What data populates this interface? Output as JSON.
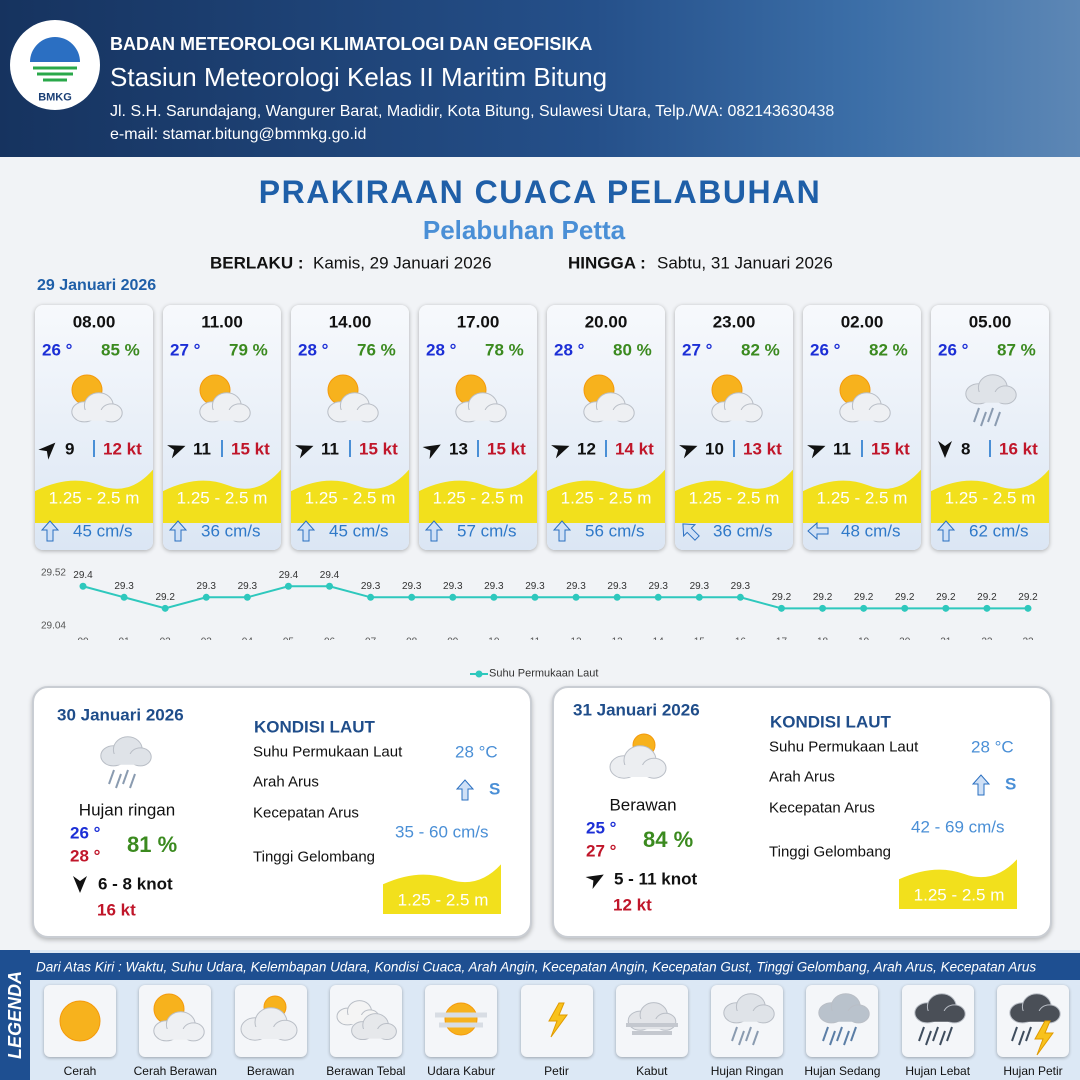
{
  "header": {
    "logo_text": "BMKG",
    "agency": "BADAN METEOROLOGI KLIMATOLOGI DAN GEOFISIKA",
    "station": "Stasiun Meteorologi Kelas II Maritim Bitung",
    "address": "Jl. S.H. Sarundajang, Wangurer Barat, Madidir, Kota Bitung, Sulawesi Utara, Telp./WA: 082143630438",
    "email": "e-mail: stamar.bitung@bmmkg.go.id"
  },
  "title": "PRAKIRAAN CUACA PELABUHAN",
  "subtitle": "Pelabuhan Petta",
  "validity": {
    "from_label": "BERLAKU :",
    "from": "Kamis, 29 Januari 2026",
    "to_label": "HINGGA :",
    "to": "Sabtu, 31 Januari 2026"
  },
  "day1": {
    "date": "29 Januari 2026",
    "slots": [
      {
        "time": "08.00",
        "temp": "26 °",
        "humidity": "85 %",
        "wind": "9",
        "gust": "12 kt",
        "wave": "1.25 - 2.5 m",
        "current": "45 cm/s"
      },
      {
        "time": "11.00",
        "temp": "27 °",
        "humidity": "79 %",
        "wind": "11",
        "gust": "15 kt",
        "wave": "1.25 - 2.5 m",
        "current": "36 cm/s"
      },
      {
        "time": "14.00",
        "temp": "28 °",
        "humidity": "76 %",
        "wind": "11",
        "gust": "15 kt",
        "wave": "1.25 - 2.5 m",
        "current": "45 cm/s"
      },
      {
        "time": "17.00",
        "temp": "28 °",
        "humidity": "78 %",
        "wind": "13",
        "gust": "15 kt",
        "wave": "1.25 - 2.5 m",
        "current": "57 cm/s"
      },
      {
        "time": "20.00",
        "temp": "28 °",
        "humidity": "80 %",
        "wind": "12",
        "gust": "14 kt",
        "wave": "1.25 - 2.5 m",
        "current": "56 cm/s"
      },
      {
        "time": "23.00",
        "temp": "27 °",
        "humidity": "82 %",
        "wind": "10",
        "gust": "13 kt",
        "wave": "1.25 - 2.5 m",
        "current": "36 cm/s"
      },
      {
        "time": "02.00",
        "temp": "26 °",
        "humidity": "82 %",
        "wind": "11",
        "gust": "15 kt",
        "wave": "1.25 - 2.5 m",
        "current": "48 cm/s"
      },
      {
        "time": "05.00",
        "temp": "26 °",
        "humidity": "87 %",
        "wind": "8",
        "gust": "16 kt",
        "wave": "1.25 - 2.5 m",
        "current": "62 cm/s"
      }
    ]
  },
  "chart_data": {
    "type": "line",
    "categories": [
      "00",
      "01",
      "02",
      "03",
      "04",
      "05",
      "06",
      "07",
      "08",
      "09",
      "10",
      "11",
      "12",
      "13",
      "14",
      "15",
      "16",
      "17",
      "18",
      "19",
      "20",
      "21",
      "22",
      "23"
    ],
    "series": [
      {
        "name": "Suhu Permukaan Laut",
        "color": "#2ec8bd",
        "values": [
          29.4,
          29.3,
          29.2,
          29.3,
          29.3,
          29.4,
          29.4,
          29.3,
          29.3,
          29.3,
          29.3,
          29.3,
          29.3,
          29.3,
          29.3,
          29.3,
          29.3,
          29.2,
          29.2,
          29.2,
          29.2,
          29.2,
          29.2,
          29.2
        ]
      }
    ],
    "ylim": [
      29.04,
      29.52
    ],
    "yticks": [
      29.04,
      29.52
    ]
  },
  "days": [
    {
      "date": "30 Januari 2026",
      "condition": "Hujan ringan",
      "temp_min": "26 °",
      "temp_max": "28 °",
      "humidity": "81 %",
      "wind": "6 - 8 knot",
      "gust": "16 kt",
      "sea_title": "KONDISI LAUT",
      "sst_label": "Suhu Permukaan Laut",
      "sst": "28 °C",
      "current_dir_label": "Arah Arus",
      "current_dir": "S",
      "current_speed_label": "Kecepatan Arus",
      "current_speed": "35 - 60 cm/s",
      "wave_label": "Tinggi Gelombang",
      "wave": "1.25 - 2.5 m"
    },
    {
      "date": "31 Januari 2026",
      "condition": "Berawan",
      "temp_min": "25 °",
      "temp_max": "27 °",
      "humidity": "84 %",
      "wind": "5 - 11 knot",
      "gust": "12 kt",
      "sea_title": "KONDISI LAUT",
      "sst_label": "Suhu Permukaan Laut",
      "sst": "28 °C",
      "current_dir_label": "Arah Arus",
      "current_dir": "S",
      "current_speed_label": "Kecepatan Arus",
      "current_speed": "42 - 69 cm/s",
      "wave_label": "Tinggi Gelombang",
      "wave": "1.25 - 2.5 m"
    }
  ],
  "legend": {
    "title": "LEGENDA",
    "description": "Dari Atas Kiri : Waktu, Suhu Udara, Kelembapan Udara, Kondisi Cuaca, Arah Angin, Kecepatan Angin, Kecepatan Gust, Tinggi Gelombang, Arah Arus, Kecepatan Arus",
    "items": [
      "Cerah",
      "Cerah Berawan",
      "Berawan",
      "Berawan Tebal",
      "Udara Kabur",
      "Petir",
      "Kabut",
      "Hujan Ringan",
      "Hujan Sedang",
      "Hujan Lebat",
      "Hujan Petir"
    ]
  }
}
